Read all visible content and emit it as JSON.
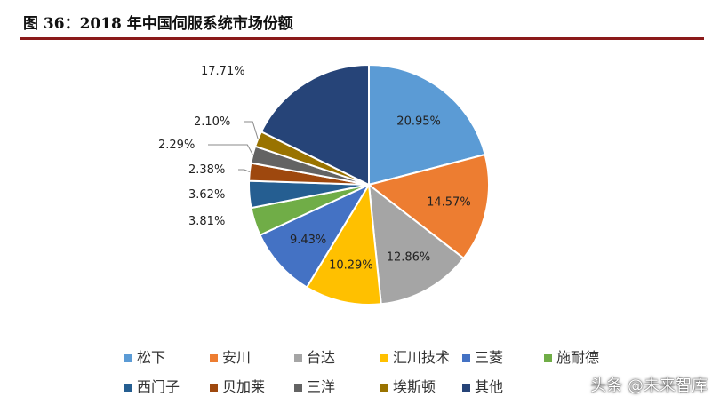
{
  "page": {
    "figure_title": "图 36：2018 年中国伺服系统市场份额",
    "watermark": "头条 @未来智库"
  },
  "chart_data": {
    "type": "pie",
    "title": "",
    "categories": [
      "松下",
      "安川",
      "台达",
      "汇川技术",
      "三菱",
      "施耐德",
      "西门子",
      "贝加莱",
      "三洋",
      "埃斯顿",
      "其他"
    ],
    "values": [
      20.95,
      14.57,
      12.86,
      10.29,
      9.43,
      3.81,
      3.62,
      2.38,
      2.29,
      2.1,
      17.71
    ],
    "labels": [
      "20.95%",
      "14.57%",
      "12.86%",
      "10.29%",
      "9.43%",
      "3.81%",
      "3.62%",
      "2.38%",
      "2.29%",
      "2.10%",
      "17.71%"
    ],
    "colors": [
      "#5b9bd5",
      "#ed7d31",
      "#a5a5a5",
      "#ffc000",
      "#4472c4",
      "#70ad47",
      "#255e91",
      "#9e480e",
      "#636363",
      "#997300",
      "#264478"
    ],
    "legend_position": "bottom"
  }
}
